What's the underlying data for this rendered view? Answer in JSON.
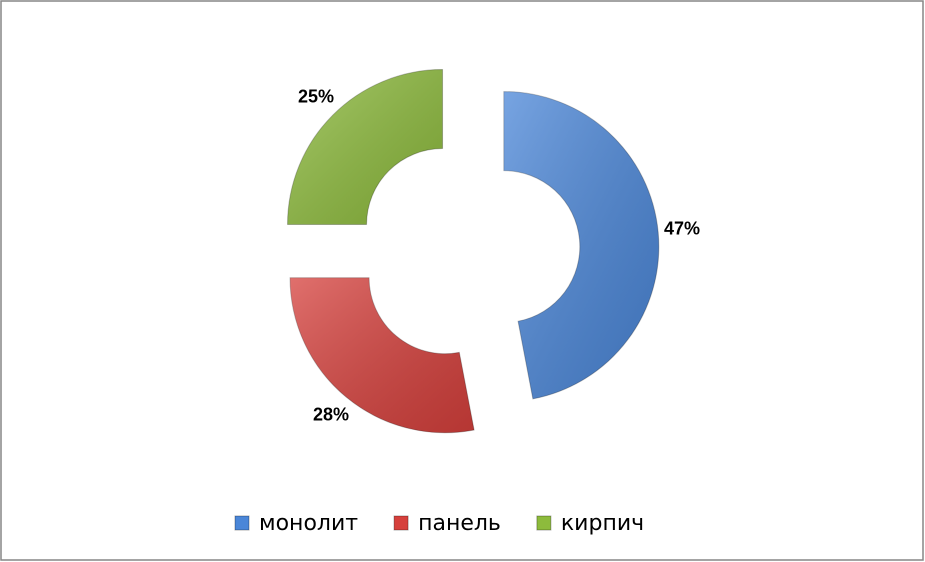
{
  "chart_data": {
    "type": "doughnut",
    "categories": [
      "монолит",
      "панель",
      "кирпич"
    ],
    "values": [
      47,
      28,
      25
    ],
    "value_labels": [
      "47%",
      "28%",
      "25%"
    ],
    "colors": [
      "#4a86d8",
      "#d6403c",
      "#8dbb3c"
    ],
    "exploded": true,
    "legend": "bottom"
  }
}
